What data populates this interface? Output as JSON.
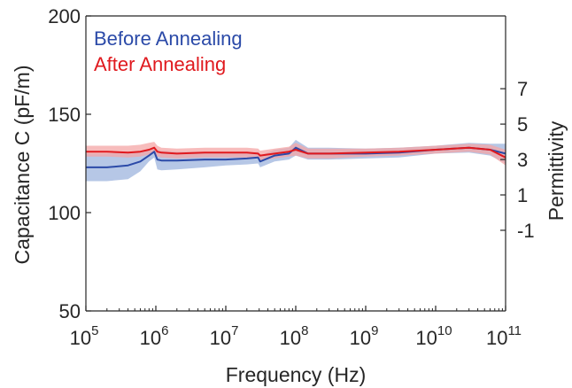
{
  "chart_data": {
    "type": "line",
    "xlabel": "Frequency (Hz)",
    "ylabel": "Capacitance C (pF/m)",
    "ylabel_right": "Permittivity",
    "xscale": "log",
    "xlim": [
      100000,
      100000000000
    ],
    "ylim": [
      50,
      200
    ],
    "x_ticks": [
      {
        "base": "10",
        "exp": "5",
        "value": 100000
      },
      {
        "base": "10",
        "exp": "6",
        "value": 1000000
      },
      {
        "base": "10",
        "exp": "7",
        "value": 10000000
      },
      {
        "base": "10",
        "exp": "8",
        "value": 100000000
      },
      {
        "base": "10",
        "exp": "9",
        "value": 1000000000
      },
      {
        "base": "10",
        "exp": "10",
        "value": 10000000000
      },
      {
        "base": "10",
        "exp": "11",
        "value": 100000000000
      }
    ],
    "y_ticks": [
      "50",
      "100",
      "150",
      "200"
    ],
    "y2_ticks": [
      {
        "label": "7",
        "at_capacitance": 163
      },
      {
        "label": "5",
        "at_capacitance": 145
      },
      {
        "label": "3",
        "at_capacitance": 127
      },
      {
        "label": "1",
        "at_capacitance": 109
      },
      {
        "label": "-1",
        "at_capacitance": 91
      }
    ],
    "grid": false,
    "legend_position": "top-left",
    "series": [
      {
        "name": "Before Annealing",
        "color": "#2b4aa8",
        "band_color": "#9db4de",
        "x": [
          100000,
          200000,
          400000,
          600000,
          800000,
          950000,
          1050000,
          1200000,
          2000000,
          5000000,
          10000000,
          20000000,
          29000000,
          31000000,
          50000000,
          80000000,
          100000000,
          150000000,
          300000000,
          1000000000,
          3000000000,
          10000000000,
          30000000000,
          60000000000,
          100000000000
        ],
        "y": [
          123,
          123,
          124,
          126,
          129,
          131,
          127,
          126.5,
          126.5,
          127,
          127,
          127.5,
          128,
          126,
          129,
          130,
          133,
          130,
          130,
          130,
          130.5,
          132,
          133,
          132,
          130
        ],
        "y_lower": [
          116,
          116,
          117,
          121,
          126,
          128,
          122,
          121.5,
          122,
          123,
          124,
          124.5,
          125,
          123,
          126,
          127,
          129,
          127,
          127,
          127.5,
          128,
          130,
          130.5,
          129,
          125
        ],
        "y_upper": [
          130,
          130,
          131,
          131,
          132,
          133,
          132,
          131.5,
          131,
          131,
          130,
          130.5,
          131,
          129,
          132,
          133,
          137,
          133,
          133,
          132.5,
          133,
          134,
          135.5,
          135,
          135
        ]
      },
      {
        "name": "After Annealing",
        "color": "#e0191e",
        "band_color": "#f4a5a6",
        "x": [
          100000,
          200000,
          400000,
          600000,
          800000,
          950000,
          1050000,
          1200000,
          2000000,
          5000000,
          10000000,
          20000000,
          29000000,
          31000000,
          50000000,
          80000000,
          100000000,
          150000000,
          300000000,
          1000000000,
          3000000000,
          10000000000,
          30000000000,
          60000000000,
          100000000000
        ],
        "y": [
          131,
          131,
          130.5,
          131,
          132,
          133,
          131,
          130.5,
          130,
          130.5,
          130.5,
          130.5,
          130,
          129,
          130,
          131,
          132,
          130,
          130,
          130.5,
          131,
          132,
          133,
          132,
          128
        ],
        "y_lower": [
          128.5,
          128.5,
          128,
          128.5,
          129.5,
          130.5,
          128.5,
          128,
          127.5,
          128,
          128,
          128,
          127.5,
          126.5,
          127.5,
          128.5,
          129,
          127.5,
          127.5,
          128.5,
          129,
          130,
          131,
          129.5,
          124
        ],
        "y_upper": [
          134,
          134,
          134,
          134.5,
          135.5,
          136,
          134,
          133,
          132.5,
          133,
          133,
          133,
          132.5,
          131.5,
          132.5,
          133.5,
          135.5,
          132.5,
          132.5,
          132.5,
          133,
          134,
          135,
          134.5,
          132
        ]
      }
    ]
  }
}
